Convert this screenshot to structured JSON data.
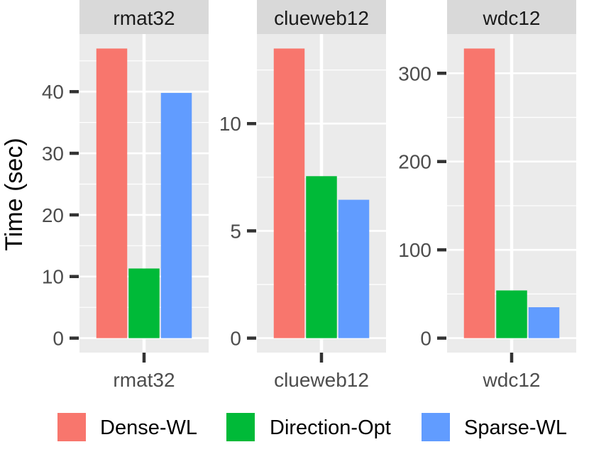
{
  "chart_data": {
    "type": "bar",
    "ylabel": "Time (sec)",
    "xlabel": "",
    "grid": true,
    "legend_position": "bottom",
    "series_names": [
      "Dense-WL",
      "Direction-Opt",
      "Sparse-WL"
    ],
    "colors": {
      "Dense-WL": "#F8766D",
      "Direction-Opt": "#00BA38",
      "Sparse-WL": "#619CFF"
    },
    "panels": [
      {
        "title": "rmat32",
        "category": "rmat32",
        "ylim": [
          -2.35,
          49.35
        ],
        "yticks": [
          0,
          10,
          20,
          30,
          40
        ],
        "ytick_labels": [
          "0",
          "10",
          "20",
          "30",
          "40"
        ],
        "values": [
          47.0,
          11.3,
          39.8
        ]
      },
      {
        "title": "clueweb12",
        "category": "clueweb12",
        "ylim": [
          -0.675,
          14.175
        ],
        "yticks": [
          0,
          5,
          10
        ],
        "ytick_labels": [
          "0",
          "5",
          "10"
        ],
        "values": [
          13.5,
          7.55,
          6.45
        ]
      },
      {
        "title": "wdc12",
        "category": "wdc12",
        "ylim": [
          -16.4,
          344.4
        ],
        "yticks": [
          0,
          100,
          200,
          300
        ],
        "ytick_labels": [
          "0",
          "100",
          "200",
          "300"
        ],
        "values": [
          328,
          54,
          35
        ]
      }
    ]
  }
}
